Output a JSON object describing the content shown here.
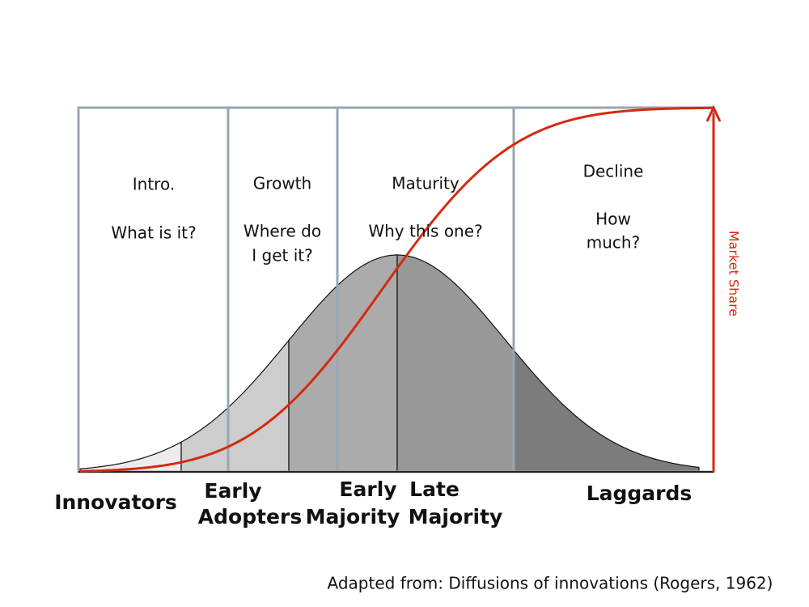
{
  "stages": [
    {
      "title": "Intro.",
      "question": [
        "What is it?"
      ]
    },
    {
      "title": "Growth",
      "question": [
        "Where do",
        "I get it?"
      ]
    },
    {
      "title": "Maturity",
      "question": [
        "Why this one?"
      ]
    },
    {
      "title": "Decline",
      "question": [
        "How",
        "much?"
      ]
    }
  ],
  "axis_label": "Market Share",
  "adopters": [
    {
      "lines": [
        "Innovators"
      ]
    },
    {
      "lines": [
        "Early",
        "Adopters"
      ]
    },
    {
      "lines": [
        "Early",
        "Majority"
      ]
    },
    {
      "lines": [
        "Late",
        "Majority"
      ]
    },
    {
      "lines": [
        "Laggards"
      ]
    }
  ],
  "citation": "Adapted from: Diffusions of innovations (Rogers, 1962)"
}
